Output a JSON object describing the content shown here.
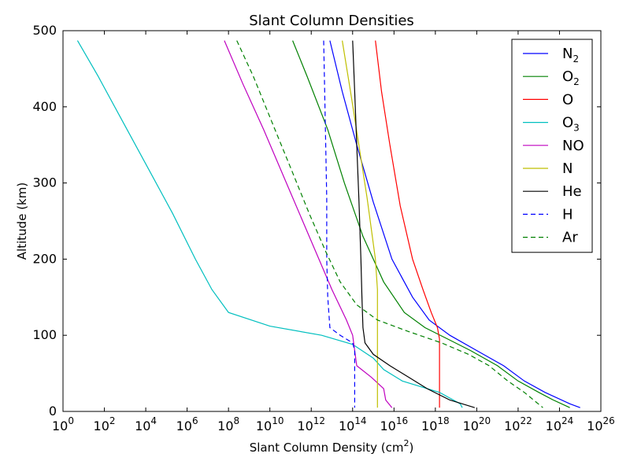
{
  "chart_data": {
    "type": "line",
    "title": "Slant Column Densities",
    "xlabel": "Slant Column Density (cm",
    "xlabel_sup": "2",
    "xlabel_suffix": ")",
    "ylabel": "Altitude (km)",
    "xscale": "log",
    "xlim_exponent": [
      0,
      26
    ],
    "ylim": [
      0,
      500
    ],
    "x_ticks_exponent": [
      0,
      2,
      4,
      6,
      8,
      10,
      12,
      14,
      16,
      18,
      20,
      22,
      24,
      26
    ],
    "x_tick_base": "10",
    "y_ticks": [
      0,
      100,
      200,
      300,
      400,
      500
    ],
    "grid": false,
    "legend_position": "top-right",
    "series": [
      {
        "name": "N",
        "sub": "2",
        "color": "#0000ff",
        "dash": "solid",
        "points": [
          [
            12.9,
            487
          ],
          [
            13.5,
            420
          ],
          [
            14.2,
            350
          ],
          [
            15.0,
            275
          ],
          [
            15.9,
            200
          ],
          [
            16.9,
            150
          ],
          [
            17.7,
            120
          ],
          [
            18.7,
            100
          ],
          [
            20.0,
            80
          ],
          [
            21.3,
            60
          ],
          [
            22.3,
            40
          ],
          [
            23.3,
            25
          ],
          [
            24.5,
            10
          ],
          [
            25.0,
            5
          ]
        ]
      },
      {
        "name": "O",
        "sub": "2",
        "color": "#008000",
        "dash": "solid",
        "points": [
          [
            11.1,
            487
          ],
          [
            11.8,
            440
          ],
          [
            12.8,
            370
          ],
          [
            13.6,
            300
          ],
          [
            14.5,
            230
          ],
          [
            15.5,
            170
          ],
          [
            16.5,
            130
          ],
          [
            17.5,
            110
          ],
          [
            18.6,
            95
          ],
          [
            19.7,
            80
          ],
          [
            21.0,
            60
          ],
          [
            22.0,
            40
          ],
          [
            23.0,
            25
          ],
          [
            23.7,
            15
          ],
          [
            24.5,
            5
          ]
        ]
      },
      {
        "name": "O",
        "sub": "",
        "color": "#ff0000",
        "dash": "solid",
        "points": [
          [
            15.1,
            487
          ],
          [
            15.4,
            420
          ],
          [
            15.8,
            350
          ],
          [
            16.3,
            270
          ],
          [
            16.9,
            200
          ],
          [
            17.4,
            160
          ],
          [
            17.8,
            130
          ],
          [
            18.1,
            110
          ],
          [
            18.2,
            95
          ],
          [
            18.2,
            80
          ],
          [
            18.2,
            60
          ],
          [
            18.2,
            40
          ],
          [
            18.2,
            20
          ],
          [
            18.2,
            5
          ]
        ]
      },
      {
        "name": "O",
        "sub": "3",
        "color": "#00bfbf",
        "dash": "solid",
        "points": [
          [
            0.7,
            487
          ],
          [
            1.7,
            440
          ],
          [
            2.9,
            380
          ],
          [
            4.1,
            320
          ],
          [
            5.3,
            260
          ],
          [
            6.4,
            200
          ],
          [
            7.2,
            160
          ],
          [
            8.0,
            130
          ],
          [
            10.0,
            112
          ],
          [
            12.5,
            100
          ],
          [
            14.0,
            88
          ],
          [
            15.0,
            70
          ],
          [
            15.5,
            55
          ],
          [
            16.4,
            40
          ],
          [
            18.2,
            25
          ],
          [
            19.2,
            10
          ],
          [
            19.3,
            5
          ]
        ]
      },
      {
        "name": "NO",
        "sub": "",
        "color": "#bf00bf",
        "dash": "solid",
        "points": [
          [
            7.8,
            487
          ],
          [
            8.7,
            430
          ],
          [
            9.7,
            370
          ],
          [
            10.8,
            300
          ],
          [
            11.9,
            230
          ],
          [
            13.0,
            160
          ],
          [
            13.7,
            120
          ],
          [
            14.0,
            100
          ],
          [
            14.1,
            80
          ],
          [
            14.2,
            60
          ],
          [
            14.9,
            45
          ],
          [
            15.5,
            30
          ],
          [
            15.6,
            15
          ],
          [
            15.9,
            5
          ]
        ]
      },
      {
        "name": "N",
        "sub": "",
        "color": "#bfbf00",
        "dash": "solid",
        "points": [
          [
            13.5,
            487
          ],
          [
            13.9,
            420
          ],
          [
            14.3,
            350
          ],
          [
            14.7,
            280
          ],
          [
            15.1,
            200
          ],
          [
            15.2,
            160
          ],
          [
            15.2,
            100
          ],
          [
            15.2,
            50
          ],
          [
            15.2,
            5
          ]
        ]
      },
      {
        "name": "He",
        "sub": "",
        "color": "#000000",
        "dash": "solid",
        "points": [
          [
            14.0,
            487
          ],
          [
            14.1,
            420
          ],
          [
            14.2,
            350
          ],
          [
            14.3,
            280
          ],
          [
            14.4,
            200
          ],
          [
            14.45,
            150
          ],
          [
            14.5,
            110
          ],
          [
            14.6,
            90
          ],
          [
            15.0,
            75
          ],
          [
            15.8,
            60
          ],
          [
            16.7,
            45
          ],
          [
            17.6,
            30
          ],
          [
            18.7,
            15
          ],
          [
            19.9,
            5
          ]
        ]
      },
      {
        "name": "H",
        "sub": "",
        "color": "#0000ff",
        "dash": "dashed",
        "points": [
          [
            12.6,
            487
          ],
          [
            12.65,
            420
          ],
          [
            12.7,
            350
          ],
          [
            12.75,
            280
          ],
          [
            12.75,
            200
          ],
          [
            12.8,
            150
          ],
          [
            12.9,
            110
          ],
          [
            13.4,
            100
          ],
          [
            14.0,
            90
          ],
          [
            14.1,
            80
          ],
          [
            14.1,
            60
          ],
          [
            14.1,
            40
          ],
          [
            14.1,
            20
          ],
          [
            14.1,
            5
          ]
        ]
      },
      {
        "name": "Ar",
        "sub": "",
        "color": "#008000",
        "dash": "dashed",
        "points": [
          [
            8.4,
            487
          ],
          [
            9.2,
            440
          ],
          [
            10.1,
            380
          ],
          [
            11.0,
            320
          ],
          [
            11.9,
            260
          ],
          [
            12.7,
            210
          ],
          [
            13.4,
            170
          ],
          [
            14.2,
            140
          ],
          [
            15.2,
            120
          ],
          [
            16.7,
            105
          ],
          [
            18.3,
            90
          ],
          [
            19.6,
            75
          ],
          [
            20.6,
            60
          ],
          [
            21.5,
            40
          ],
          [
            22.3,
            25
          ],
          [
            23.2,
            5
          ]
        ]
      }
    ]
  }
}
